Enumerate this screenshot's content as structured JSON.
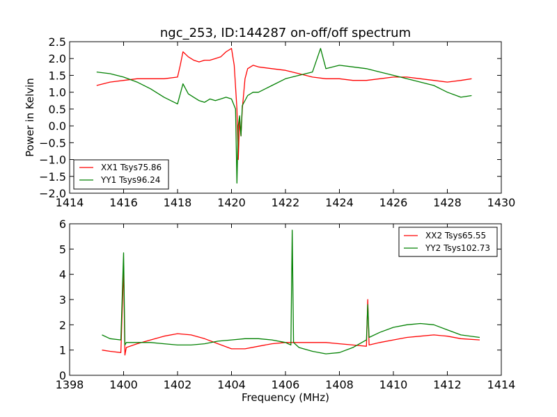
{
  "chart_data": [
    {
      "type": "line",
      "title": "ngc_253, ID:144287 on-off/off spectrum",
      "xlabel": "",
      "ylabel": "Power in Kelvin",
      "xlim": [
        1414,
        1430
      ],
      "ylim": [
        -2.0,
        2.5
      ],
      "xticks": [
        1414,
        1416,
        1418,
        1420,
        1422,
        1424,
        1426,
        1428,
        1430
      ],
      "xtick_labels": [
        "1414",
        "1416",
        "1418",
        "1420",
        "1422",
        "1424",
        "1426",
        "1428",
        "1430"
      ],
      "yticks": [
        -2.0,
        -1.5,
        -1.0,
        -0.5,
        0.0,
        0.5,
        1.0,
        1.5,
        2.0,
        2.5
      ],
      "ytick_labels": [
        "−2.0",
        "−1.5",
        "−1.0",
        "−0.5",
        "0.0",
        "0.5",
        "1.0",
        "1.5",
        "2.0",
        "2.5"
      ],
      "legend_position": "lower-left",
      "series": [
        {
          "name": "XX1 Tsys75.86",
          "color": "#ff0000",
          "x": [
            1415.0,
            1415.5,
            1416.0,
            1416.5,
            1417.0,
            1417.5,
            1418.0,
            1418.1,
            1418.2,
            1418.4,
            1418.6,
            1418.8,
            1419.0,
            1419.2,
            1419.4,
            1419.6,
            1419.8,
            1420.0,
            1420.1,
            1420.2,
            1420.25,
            1420.3,
            1420.35,
            1420.4,
            1420.5,
            1420.6,
            1420.8,
            1421.0,
            1421.5,
            1422.0,
            1422.5,
            1423.0,
            1423.5,
            1424.0,
            1424.5,
            1425.0,
            1425.5,
            1426.0,
            1426.5,
            1427.0,
            1427.5,
            1428.0,
            1428.5,
            1428.9
          ],
          "y": [
            1.2,
            1.3,
            1.35,
            1.4,
            1.4,
            1.4,
            1.45,
            1.8,
            2.2,
            2.05,
            1.95,
            1.9,
            1.95,
            1.95,
            2.0,
            2.05,
            2.2,
            2.3,
            1.8,
            0.5,
            -1.0,
            0.2,
            -0.3,
            0.5,
            1.4,
            1.7,
            1.8,
            1.75,
            1.7,
            1.65,
            1.55,
            1.45,
            1.4,
            1.4,
            1.35,
            1.35,
            1.4,
            1.45,
            1.45,
            1.4,
            1.35,
            1.3,
            1.35,
            1.4
          ]
        },
        {
          "name": "YY1 Tsys96.24",
          "color": "#008000",
          "x": [
            1415.0,
            1415.5,
            1416.0,
            1416.5,
            1417.0,
            1417.5,
            1418.0,
            1418.2,
            1418.4,
            1418.6,
            1418.8,
            1419.0,
            1419.2,
            1419.4,
            1419.6,
            1419.8,
            1420.0,
            1420.15,
            1420.2,
            1420.25,
            1420.3,
            1420.35,
            1420.4,
            1420.6,
            1420.8,
            1421.0,
            1421.5,
            1422.0,
            1422.5,
            1423.0,
            1423.3,
            1423.5,
            1424.0,
            1424.5,
            1425.0,
            1425.5,
            1426.0,
            1426.5,
            1427.0,
            1427.5,
            1428.0,
            1428.5,
            1428.9
          ],
          "y": [
            1.6,
            1.55,
            1.45,
            1.3,
            1.1,
            0.85,
            0.65,
            1.25,
            0.95,
            0.85,
            0.75,
            0.7,
            0.8,
            0.75,
            0.8,
            0.85,
            0.8,
            0.5,
            -1.7,
            0.0,
            0.3,
            -0.3,
            0.6,
            0.9,
            1.0,
            1.0,
            1.2,
            1.4,
            1.5,
            1.6,
            2.3,
            1.7,
            1.8,
            1.75,
            1.7,
            1.6,
            1.5,
            1.4,
            1.3,
            1.2,
            1.0,
            0.85,
            0.9
          ]
        }
      ]
    },
    {
      "type": "line",
      "title": "",
      "xlabel": "Frequency (MHz)",
      "ylabel": "",
      "xlim": [
        1398,
        1414
      ],
      "ylim": [
        0,
        6
      ],
      "xticks": [
        1398,
        1400,
        1402,
        1404,
        1406,
        1408,
        1410,
        1412,
        1414
      ],
      "xtick_labels": [
        "1398",
        "1400",
        "1402",
        "1404",
        "1406",
        "1408",
        "1410",
        "1412",
        "1414"
      ],
      "yticks": [
        0,
        1,
        2,
        3,
        4,
        5,
        6
      ],
      "ytick_labels": [
        "0",
        "1",
        "2",
        "3",
        "4",
        "5",
        "6"
      ],
      "legend_position": "upper-right",
      "series": [
        {
          "name": "XX2 Tsys65.55",
          "color": "#ff0000",
          "x": [
            1399.2,
            1399.5,
            1399.9,
            1400.0,
            1400.05,
            1400.1,
            1400.5,
            1401.0,
            1401.5,
            1402.0,
            1402.5,
            1403.0,
            1403.5,
            1404.0,
            1404.5,
            1405.0,
            1405.5,
            1406.0,
            1406.5,
            1407.0,
            1407.5,
            1408.0,
            1408.5,
            1409.0,
            1409.05,
            1409.1,
            1409.5,
            1410.0,
            1410.5,
            1411.0,
            1411.5,
            1412.0,
            1412.5,
            1413.2
          ],
          "y": [
            1.0,
            0.95,
            0.9,
            4.3,
            0.8,
            1.1,
            1.25,
            1.4,
            1.55,
            1.65,
            1.6,
            1.45,
            1.25,
            1.05,
            1.05,
            1.15,
            1.25,
            1.3,
            1.3,
            1.3,
            1.3,
            1.25,
            1.2,
            1.15,
            3.0,
            1.2,
            1.3,
            1.4,
            1.5,
            1.55,
            1.6,
            1.55,
            1.45,
            1.4
          ]
        },
        {
          "name": "YY2 Tsys102.73",
          "color": "#008000",
          "x": [
            1399.2,
            1399.5,
            1399.9,
            1400.0,
            1400.05,
            1400.1,
            1400.5,
            1401.0,
            1401.5,
            1402.0,
            1402.5,
            1403.0,
            1403.5,
            1404.0,
            1404.5,
            1405.0,
            1405.5,
            1406.0,
            1406.2,
            1406.25,
            1406.3,
            1406.5,
            1407.0,
            1407.5,
            1408.0,
            1408.5,
            1409.0,
            1409.05,
            1409.1,
            1409.5,
            1410.0,
            1410.5,
            1411.0,
            1411.5,
            1412.0,
            1412.5,
            1413.2
          ],
          "y": [
            1.6,
            1.45,
            1.4,
            4.85,
            1.2,
            1.3,
            1.3,
            1.3,
            1.25,
            1.2,
            1.2,
            1.25,
            1.35,
            1.4,
            1.45,
            1.45,
            1.4,
            1.3,
            1.2,
            5.75,
            1.3,
            1.1,
            0.95,
            0.85,
            0.9,
            1.1,
            1.4,
            2.8,
            1.5,
            1.7,
            1.9,
            2.0,
            2.05,
            2.0,
            1.8,
            1.6,
            1.5
          ]
        }
      ]
    }
  ]
}
